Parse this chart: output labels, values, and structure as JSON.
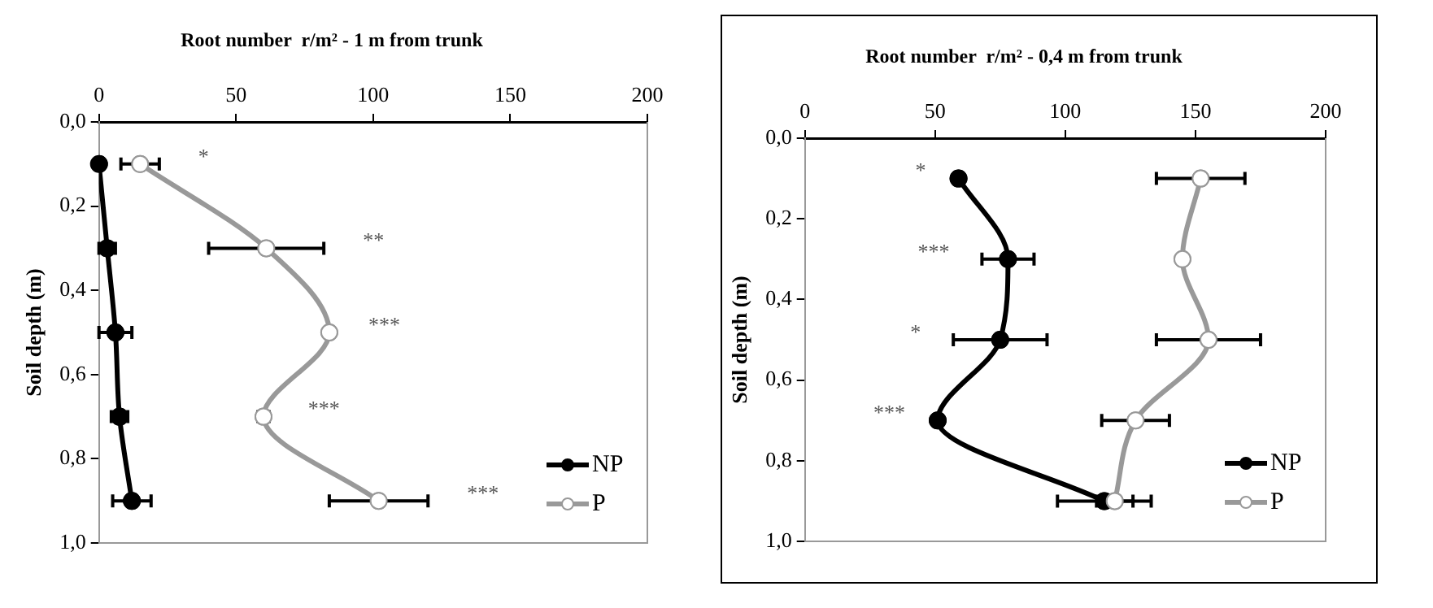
{
  "chart_data": [
    {
      "type": "line",
      "title": "Root number  r/m² - 1 m from trunk",
      "ylabel": "Soil depth (m)",
      "xlim": [
        0,
        200
      ],
      "xticks": [
        0,
        50,
        100,
        150,
        200
      ],
      "ylim": [
        1.0,
        0.0
      ],
      "yticks": [
        {
          "value": 0.0,
          "label": "0,0"
        },
        {
          "value": 0.2,
          "label": "0,2"
        },
        {
          "value": 0.4,
          "label": "0,4"
        },
        {
          "value": 0.6,
          "label": "0,6"
        },
        {
          "value": 0.8,
          "label": "0,8"
        },
        {
          "value": 1.0,
          "label": "1,0"
        }
      ],
      "grid": false,
      "legend": "bottom right",
      "marker": "circle",
      "series": [
        {
          "name": "NP",
          "color": "#000000",
          "x": [
            0,
            3,
            6,
            7.5,
            12
          ],
          "values": [
            0.1,
            0.3,
            0.5,
            0.7,
            0.9
          ],
          "xerrors": [
            null,
            3,
            6,
            3,
            7
          ]
        },
        {
          "name": "P",
          "color": "#999999",
          "x": [
            15,
            61,
            84,
            60,
            102
          ],
          "values": [
            0.1,
            0.3,
            0.5,
            0.7,
            0.9
          ],
          "xerrors": [
            7,
            21,
            null,
            2,
            18
          ]
        }
      ],
      "annotations": [
        "*",
        "**",
        "***",
        "***",
        "***"
      ]
    },
    {
      "type": "line",
      "title": "Root number  r/m² - 0,4 m from trunk",
      "ylabel": "Soil depth (m)",
      "xlim": [
        0,
        200
      ],
      "xticks": [
        0,
        50,
        100,
        150,
        200
      ],
      "ylim": [
        1.0,
        0.0
      ],
      "yticks": [
        {
          "value": 0.0,
          "label": "0,0"
        },
        {
          "value": 0.2,
          "label": "0,2"
        },
        {
          "value": 0.4,
          "label": "0,4"
        },
        {
          "value": 0.6,
          "label": "0,6"
        },
        {
          "value": 0.8,
          "label": "0,8"
        },
        {
          "value": 1.0,
          "label": "1,0"
        }
      ],
      "grid": false,
      "legend": "bottom right",
      "marker": "circle",
      "series": [
        {
          "name": "NP",
          "color": "#000000",
          "x": [
            59,
            78,
            75,
            51,
            115
          ],
          "values": [
            0.1,
            0.3,
            0.5,
            0.7,
            0.9
          ],
          "xerrors": [
            null,
            10,
            18,
            null,
            18
          ]
        },
        {
          "name": "P",
          "color": "#999999",
          "x": [
            152,
            145,
            155,
            127,
            119
          ],
          "values": [
            0.1,
            0.3,
            0.5,
            0.7,
            0.9
          ],
          "xerrors": [
            17,
            null,
            20,
            13,
            7
          ]
        }
      ],
      "annotations": [
        "*",
        "***",
        "*",
        "***"
      ]
    }
  ]
}
